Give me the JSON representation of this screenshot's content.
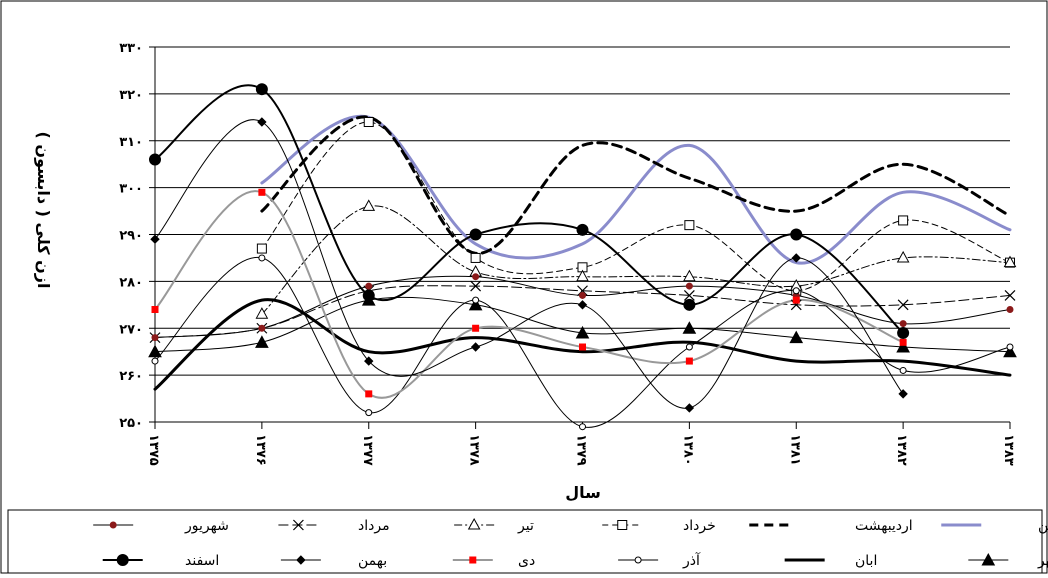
{
  "chart_data": {
    "type": "line",
    "title": "",
    "xlabel": "سال",
    "ylabel": "ازن كلى ( دابسون )",
    "categories": [
      "۱۳۷۵",
      "۱۳۷۶",
      "۱۳۷۷",
      "۱۳۷۸",
      "۱۳۷۹",
      "۱۳۸۰",
      "۱۳۸۱",
      "۱۳۸۲",
      "۱۳۸۳"
    ],
    "ylim": [
      250,
      330
    ],
    "yticks": [
      250,
      260,
      270,
      280,
      290,
      300,
      310,
      320,
      330
    ],
    "ytick_labels": [
      "۲۵۰",
      "۲۶۰",
      "۲۷۰",
      "۲۸۰",
      "۲۹۰",
      "۳۰۰",
      "۳۱۰",
      "۳۲۰",
      "۳۳۰"
    ],
    "grid": true,
    "legend_position": "bottom",
    "series": [
      {
        "name": "فروردين",
        "color": "#8a8ccc",
        "style": "solid",
        "width": 3,
        "marker": "none",
        "values": [
          null,
          301,
          315,
          288,
          288,
          309,
          284,
          299,
          291
        ]
      },
      {
        "name": "ارديبهشت",
        "color": "#000000",
        "style": "dash-bold",
        "width": 3,
        "marker": "none",
        "values": [
          null,
          295,
          315,
          286,
          309,
          302,
          295,
          305,
          294
        ]
      },
      {
        "name": "خرداد",
        "color": "#000000",
        "style": "dashed",
        "width": 1,
        "marker": "square-open",
        "values": [
          null,
          287,
          314,
          285,
          283,
          292,
          278,
          293,
          284
        ]
      },
      {
        "name": "تير",
        "color": "#000000",
        "style": "dashdot",
        "width": 1,
        "marker": "triangle-open",
        "values": [
          null,
          273,
          296,
          282,
          281,
          281,
          279,
          285,
          284
        ]
      },
      {
        "name": "مرداد",
        "color": "#000000",
        "style": "longdash",
        "width": 1,
        "marker": "x",
        "values": [
          268,
          270,
          278,
          279,
          278,
          277,
          275,
          275,
          277
        ]
      },
      {
        "name": "شهريور",
        "color": "#000000",
        "style": "solid",
        "width": 1,
        "marker": "dot-red",
        "values": [
          268,
          270,
          279,
          281,
          277,
          279,
          277,
          271,
          274
        ]
      },
      {
        "name": "مهر",
        "color": "#000000",
        "style": "solid",
        "width": 1,
        "marker": "triangle-filled",
        "values": [
          265,
          267,
          276,
          275,
          269,
          270,
          268,
          266,
          265
        ]
      },
      {
        "name": "ابان",
        "color": "#000000",
        "style": "solid",
        "width": 3,
        "marker": "none",
        "values": [
          257,
          276,
          265,
          268,
          265,
          267,
          263,
          263,
          260
        ]
      },
      {
        "name": "آذر",
        "color": "#000000",
        "style": "solid",
        "width": 1,
        "marker": "circle-open",
        "values": [
          263,
          285,
          252,
          276,
          249,
          266,
          278,
          261,
          266
        ]
      },
      {
        "name": "دى",
        "color": "#999999",
        "style": "solid",
        "width": 2,
        "marker": "square-red",
        "values": [
          274,
          299,
          256,
          270,
          266,
          263,
          276,
          267,
          null
        ]
      },
      {
        "name": "بهمن",
        "color": "#000000",
        "style": "solid",
        "width": 1,
        "marker": "diamond",
        "values": [
          289,
          314,
          263,
          266,
          275,
          253,
          285,
          256,
          null
        ]
      },
      {
        "name": "اسفند",
        "color": "#000000",
        "style": "solid",
        "width": 2,
        "marker": "circle-filled",
        "values": [
          306,
          321,
          277,
          290,
          291,
          275,
          290,
          269,
          null
        ]
      }
    ]
  }
}
